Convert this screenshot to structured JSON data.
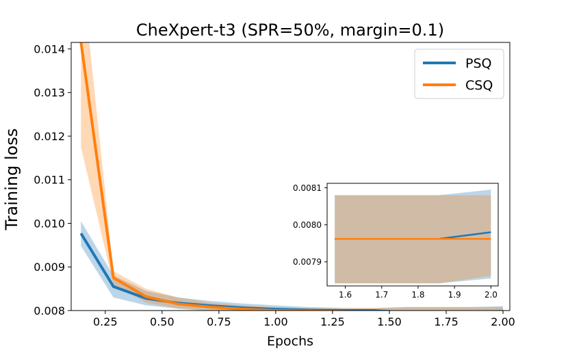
{
  "chart_data": {
    "type": "line",
    "title": "CheXpert-t3 (SPR=50%, margin=0.1)",
    "xlabel": "Epochs",
    "ylabel": "Training loss",
    "xlim": [
      0.1,
      2.03
    ],
    "ylim": [
      0.008,
      0.01415
    ],
    "xticks": [
      0.25,
      0.5,
      0.75,
      1.0,
      1.25,
      1.5,
      1.75,
      2.0
    ],
    "xtick_labels": [
      "0.25",
      "0.50",
      "0.75",
      "1.00",
      "1.25",
      "1.50",
      "1.75",
      "2.00"
    ],
    "yticks": [
      0.008,
      0.009,
      0.01,
      0.011,
      0.012,
      0.013,
      0.014
    ],
    "ytick_labels": [
      "0.008",
      "0.009",
      "0.010",
      "0.011",
      "0.012",
      "0.013",
      "0.014"
    ],
    "grid": false,
    "legend_position": "top-right",
    "x": [
      0.143,
      0.286,
      0.429,
      0.571,
      0.714,
      0.857,
      1.0,
      1.143,
      1.286,
      1.429,
      1.571,
      1.714,
      1.857,
      2.0
    ],
    "series": [
      {
        "name": "PSQ",
        "color": "#1f77b4",
        "values": [
          0.00977,
          0.00855,
          0.00828,
          0.00817,
          0.00811,
          0.00806,
          0.00803,
          0.00801,
          0.008,
          0.008,
          0.00796,
          0.00796,
          0.00796,
          0.00798
        ],
        "lower": [
          0.00948,
          0.0083,
          0.00812,
          0.00804,
          0.00799,
          0.00795,
          0.00794,
          0.00794,
          0.00794,
          0.00795,
          0.00793,
          0.00793,
          0.00793,
          0.00794
        ],
        "upper": [
          0.01005,
          0.0088,
          0.00845,
          0.0083,
          0.00822,
          0.00816,
          0.00812,
          0.00808,
          0.00806,
          0.00805,
          0.00808,
          0.00808,
          0.00808,
          0.0081
        ]
      },
      {
        "name": "CSQ",
        "color": "#ff7f0e",
        "values": [
          0.01416,
          0.00875,
          0.00832,
          0.00815,
          0.00808,
          0.00803,
          0.008,
          0.00799,
          0.00798,
          0.00797,
          0.00796,
          0.00796,
          0.00796,
          0.00796
        ],
        "lower": [
          0.01175,
          0.0086,
          0.00818,
          0.00805,
          0.008,
          0.00797,
          0.00795,
          0.00795,
          0.00794,
          0.00794,
          0.00794,
          0.00794,
          0.00794,
          0.00794
        ],
        "upper": [
          0.016,
          0.0089,
          0.0085,
          0.0083,
          0.00818,
          0.00812,
          0.00808,
          0.00806,
          0.00805,
          0.00806,
          0.00808,
          0.00808,
          0.00808,
          0.00808
        ]
      }
    ],
    "inset": {
      "xlim": [
        1.55,
        2.02
      ],
      "ylim": [
        0.007835,
        0.008112
      ],
      "xticks": [
        1.6,
        1.7,
        1.8,
        1.9,
        2.0
      ],
      "xtick_labels": [
        "1.6",
        "1.7",
        "1.8",
        "1.9",
        "2.0"
      ],
      "yticks": [
        0.0079,
        0.008,
        0.0081
      ],
      "ytick_labels": [
        "0.0079",
        "0.0080",
        "0.0081"
      ],
      "x": [
        1.571,
        1.714,
        1.857,
        2.0
      ],
      "series": [
        {
          "name": "PSQ",
          "color": "#1f77b4",
          "values": [
            0.007962,
            0.007962,
            0.007962,
            0.00798
          ],
          "lower": [
            0.007842,
            0.007842,
            0.007842,
            0.007855
          ],
          "upper": [
            0.00808,
            0.00808,
            0.00808,
            0.008095
          ]
        },
        {
          "name": "CSQ",
          "color": "#ff7f0e",
          "values": [
            0.007962,
            0.007962,
            0.007962,
            0.007962
          ],
          "lower": [
            0.007842,
            0.007842,
            0.007842,
            0.007862
          ],
          "upper": [
            0.00808,
            0.00808,
            0.00808,
            0.00808
          ]
        }
      ]
    }
  }
}
